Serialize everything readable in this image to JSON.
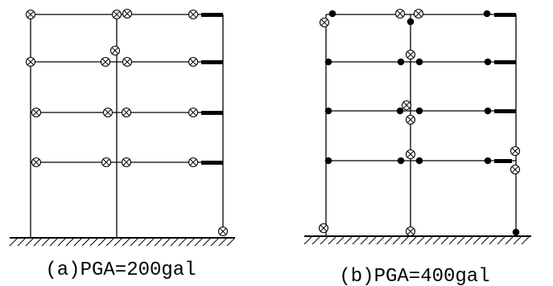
{
  "figure": {
    "panels": [
      {
        "id": "a",
        "caption": "(a)PGA=200gal"
      },
      {
        "id": "b",
        "caption": "(b)PGA=400gal"
      }
    ],
    "symbols": {
      "crossed_circle": "crossed-circle-icon",
      "solid_dot": "filled-dot-icon",
      "beam_end_block": "black-bar-icon"
    },
    "colors": {
      "stroke": "#000000",
      "background": "#ffffff"
    }
  }
}
